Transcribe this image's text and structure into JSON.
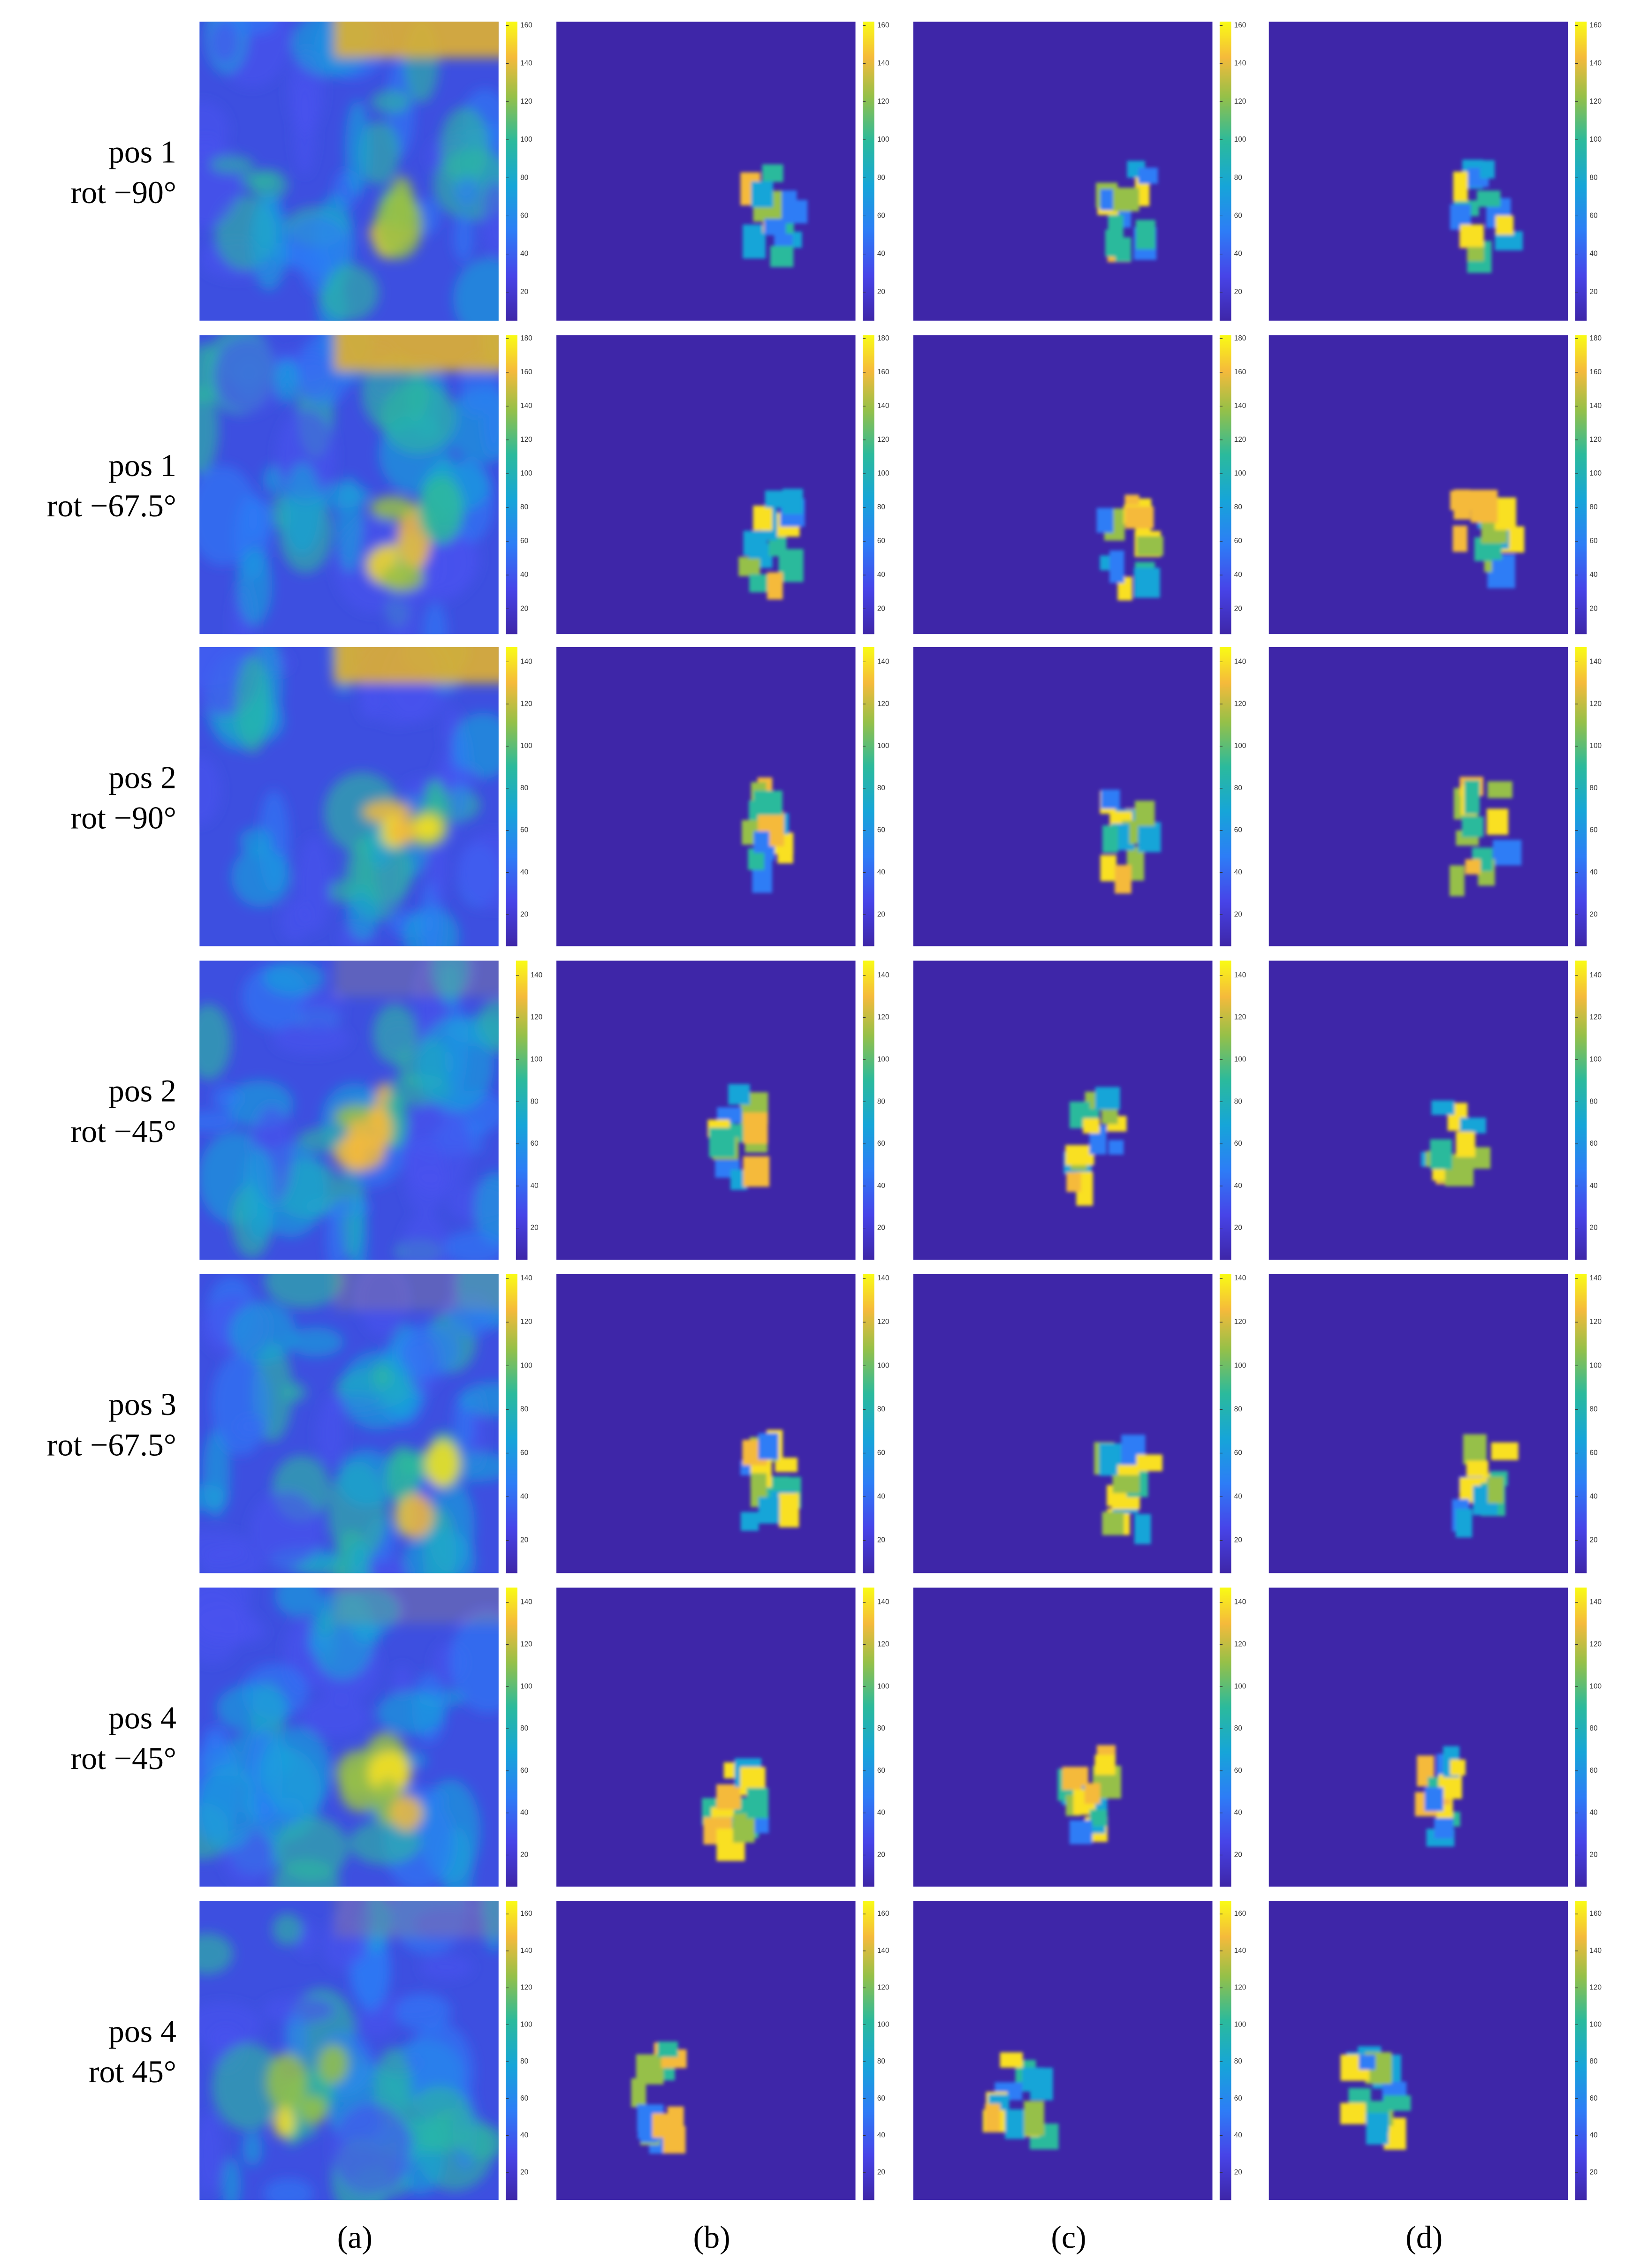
{
  "figure": {
    "rows": [
      {
        "pos": "pos 1",
        "rot": "rot −90°",
        "clim": [
          5,
          162
        ],
        "cbar_ticks": [
          20,
          40,
          60,
          80,
          100,
          120,
          140,
          160
        ]
      },
      {
        "pos": "pos 1",
        "rot": "rot −67.5°",
        "clim": [
          5,
          182
        ],
        "cbar_ticks": [
          20,
          40,
          60,
          80,
          100,
          120,
          140,
          160,
          180
        ]
      },
      {
        "pos": "pos 2",
        "rot": "rot −90°",
        "clim": [
          5,
          147
        ],
        "cbar_ticks": [
          20,
          40,
          60,
          80,
          100,
          120,
          140
        ]
      },
      {
        "pos": "pos 2",
        "rot": "rot −45°",
        "clim": [
          5,
          147
        ],
        "cbar_ticks": [
          20,
          40,
          60,
          80,
          100,
          120,
          140
        ]
      },
      {
        "pos": "pos 3",
        "rot": "rot −67.5°",
        "clim": [
          5,
          142
        ],
        "cbar_ticks": [
          20,
          40,
          60,
          80,
          100,
          120,
          140
        ]
      },
      {
        "pos": "pos 4",
        "rot": "rot −45°",
        "clim": [
          5,
          147
        ],
        "cbar_ticks": [
          20,
          40,
          60,
          80,
          100,
          120,
          140
        ]
      },
      {
        "pos": "pos 4",
        "rot": "rot 45°",
        "clim": [
          5,
          167
        ],
        "cbar_ticks": [
          20,
          40,
          60,
          80,
          100,
          120,
          140,
          160
        ]
      }
    ],
    "columns": [
      "(a)",
      "(b)",
      "(c)",
      "(d)"
    ]
  }
}
